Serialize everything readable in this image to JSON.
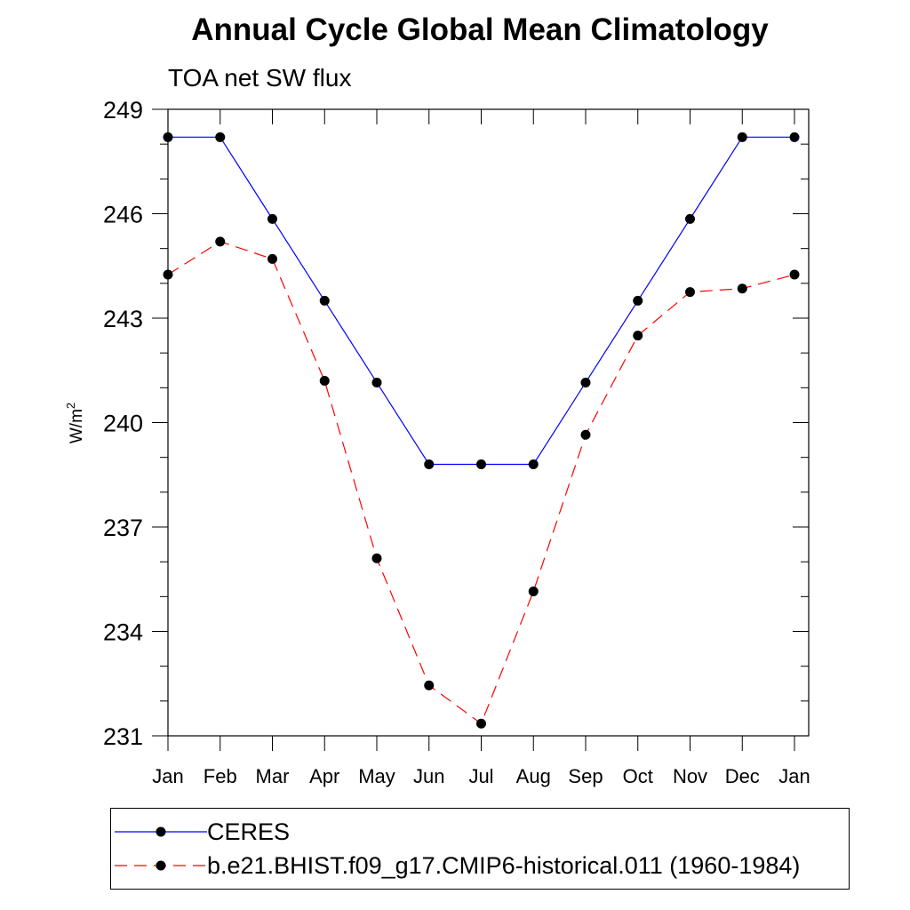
{
  "title": "Annual Cycle Global Mean Climatology",
  "chart_data": {
    "type": "line",
    "title": "Annual Cycle Global Mean Climatology",
    "subtitle": "TOA net SW flux",
    "ylabel_main": "W/m",
    "ylabel_sup": "2",
    "categories": [
      "Jan",
      "Feb",
      "Mar",
      "Apr",
      "May",
      "Jun",
      "Jul",
      "Aug",
      "Sep",
      "Oct",
      "Nov",
      "Dec",
      "Jan"
    ],
    "yticks": [
      231,
      234,
      237,
      240,
      243,
      246,
      249
    ],
    "ylim": [
      231,
      249
    ],
    "grid": false,
    "legend_position": "bottom",
    "series": [
      {
        "name": "CERES",
        "color": "#0000ff",
        "dash": "solid",
        "values": [
          248.2,
          248.2,
          245.85,
          243.5,
          241.15,
          238.8,
          238.8,
          238.8,
          241.15,
          243.5,
          245.85,
          248.2,
          248.2
        ]
      },
      {
        "name": "b.e21.BHIST.f09_g17.CMIP6-historical.011 (1960-1984)",
        "color": "#ff0000",
        "dash": "dashed",
        "values": [
          244.25,
          245.2,
          244.7,
          241.2,
          236.1,
          232.45,
          231.35,
          235.15,
          239.65,
          242.5,
          243.75,
          243.85,
          244.25
        ]
      }
    ]
  }
}
